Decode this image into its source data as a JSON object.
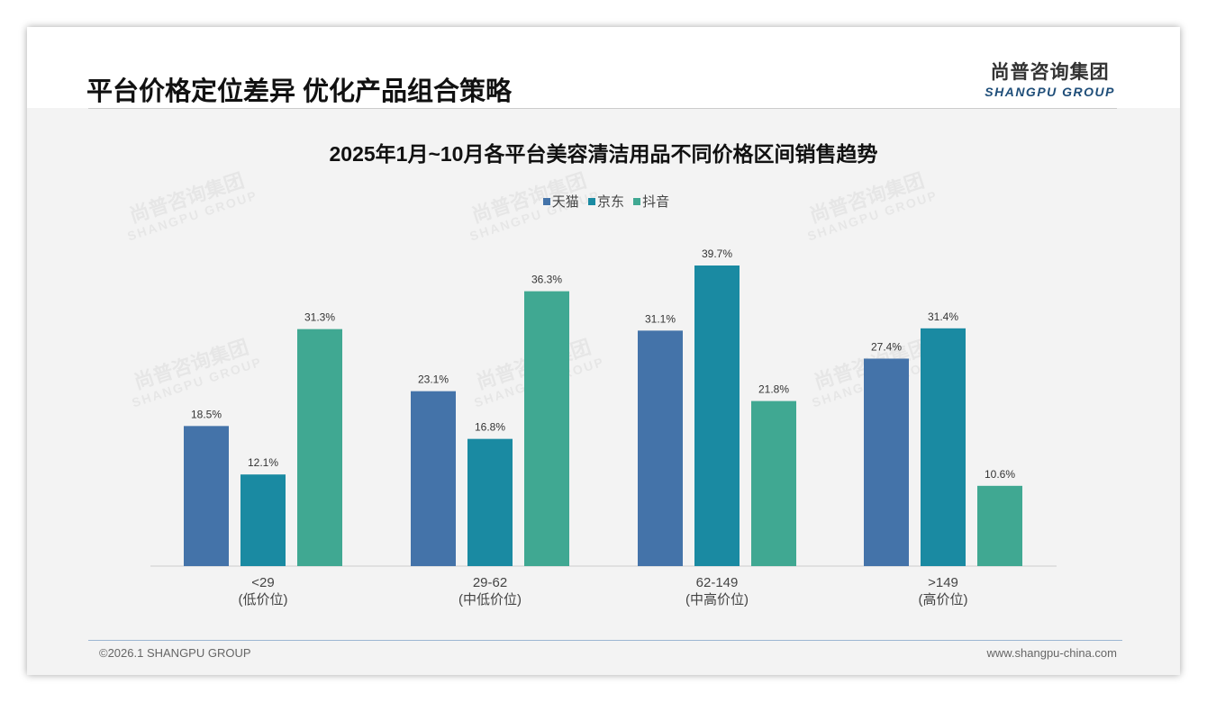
{
  "header": {
    "title": "平台价格定位差异 优化产品组合策略",
    "logo_cn": "尚普咨询集团",
    "logo_en": "SHANGPU GROUP"
  },
  "footer": {
    "copyright": "©2026.1 SHANGPU GROUP",
    "url": "www.shangpu-china.com"
  },
  "chart_data": {
    "type": "bar",
    "title": "2025年1月~10月各平台美容清洁用品不同价格区间销售趋势",
    "categories": [
      "<29",
      "29-62",
      "62-149",
      ">149"
    ],
    "category_sublabels": [
      "(低价位)",
      "(中低价位)",
      "(中高价位)",
      "(高价位)"
    ],
    "series": [
      {
        "name": "天猫",
        "color": "#4473a9",
        "values": [
          18.5,
          23.1,
          31.1,
          27.4
        ]
      },
      {
        "name": "京东",
        "color": "#1a8aa2",
        "values": [
          12.1,
          16.8,
          39.7,
          31.4
        ]
      },
      {
        "name": "抖音",
        "color": "#40a892",
        "values": [
          31.3,
          36.3,
          21.8,
          10.6
        ]
      }
    ],
    "unit": "%",
    "ylim": [
      0,
      40
    ],
    "legend": "top-center",
    "grid": false
  }
}
